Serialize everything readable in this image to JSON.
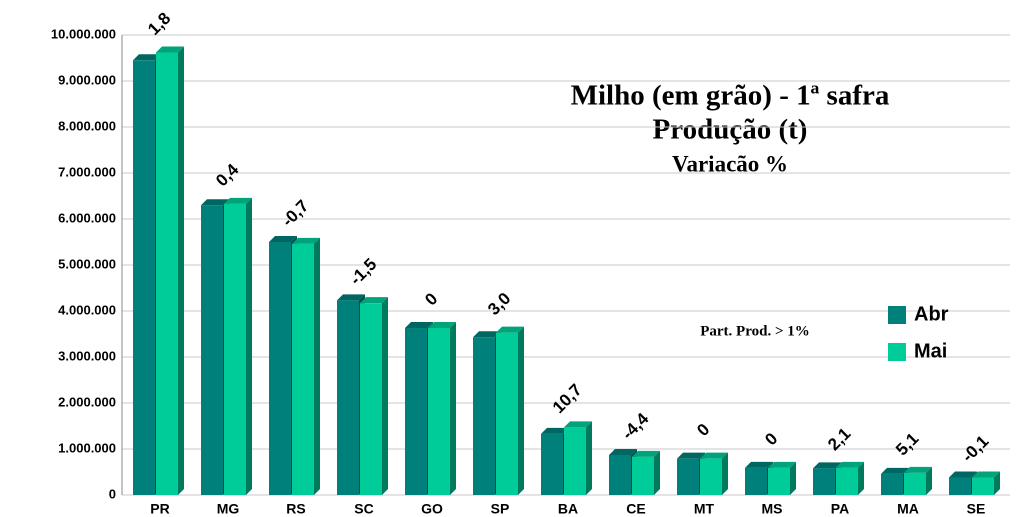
{
  "chart_data": {
    "type": "bar3d",
    "title": "Milho (em grão) - 1ª safra",
    "subtitle": "Produção (t)",
    "subtitle2": "Variacão %",
    "note": "Part. Prod. > 1%",
    "categories": [
      "PR",
      "MG",
      "RS",
      "SC",
      "GO",
      "SP",
      "BA",
      "CE",
      "MT",
      "MS",
      "PA",
      "MA",
      "SE"
    ],
    "series": [
      {
        "name": "Abr",
        "color": "#00807a",
        "values": [
          9450000,
          6300000,
          5500000,
          4230000,
          3630000,
          3430000,
          1330000,
          870000,
          790000,
          590000,
          580000,
          460000,
          380000
        ]
      },
      {
        "name": "Mai",
        "color": "#00cc99",
        "values": [
          9620000,
          6330000,
          5460000,
          4170000,
          3630000,
          3530000,
          1470000,
          830000,
          790000,
          590000,
          590000,
          480000,
          380000
        ]
      }
    ],
    "annotations": [
      "1,8",
      "0,4",
      "-0,7",
      "-1,5",
      "0",
      "3,0",
      "10,7",
      "-4,4",
      "0",
      "0",
      "2,1",
      "5,1",
      "-0,1"
    ],
    "ylim": [
      0,
      10000000
    ],
    "yticks": [
      0,
      {
        "value": 1000000,
        "label": "1.000.000"
      },
      {
        "value": 2000000,
        "label": "2.000.000"
      },
      {
        "value": 3000000,
        "label": "3.000.000"
      },
      {
        "value": 4000000,
        "label": "4.000.000"
      },
      {
        "value": 5000000,
        "label": "5.000.000"
      },
      {
        "value": 6000000,
        "label": "6.000.000"
      },
      {
        "value": 7000000,
        "label": "7.000.000"
      },
      {
        "value": 8000000,
        "label": "8.000.000"
      },
      {
        "value": 9000000,
        "label": "9.000.000"
      },
      {
        "value": 10000000,
        "label": "10.000.000"
      }
    ],
    "grid": true,
    "legend": "right"
  }
}
